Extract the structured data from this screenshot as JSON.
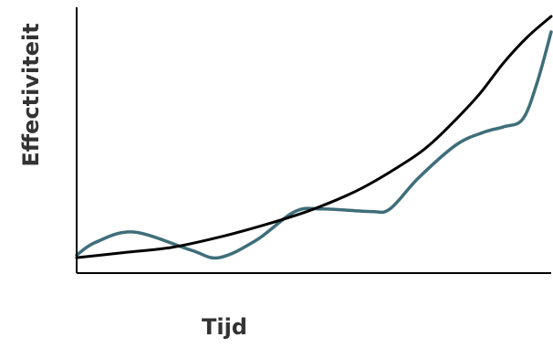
{
  "chart_data": {
    "type": "line",
    "xlabel": "Tijd",
    "ylabel": "Effectiviteit",
    "xlim": [
      0,
      100
    ],
    "ylim": [
      0,
      100
    ],
    "grid": false,
    "legend": "none",
    "series": [
      {
        "color": "#000000",
        "x": [
          0,
          10,
          20,
          30,
          40,
          50,
          60,
          70,
          75,
          80,
          85,
          90,
          95,
          100
        ],
        "y": [
          6,
          8,
          10,
          14,
          19,
          25,
          33,
          44,
          51,
          60,
          70,
          82,
          92,
          100
        ]
      },
      {
        "color": "#3f6e7a",
        "x": [
          0,
          4,
          12,
          24,
          30,
          38,
          46,
          52,
          62,
          66,
          72,
          80,
          86,
          90,
          94,
          97,
          100
        ],
        "y": [
          7,
          12,
          16,
          9,
          6,
          13,
          24,
          25,
          24,
          25,
          37,
          50,
          55,
          57,
          60,
          74,
          94
        ]
      }
    ]
  }
}
